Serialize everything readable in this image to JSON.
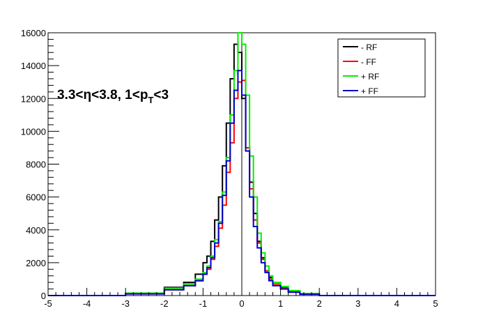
{
  "chart_data": {
    "type": "line",
    "style": "step-histogram",
    "title": "",
    "xlabel": "",
    "ylabel": "",
    "xlim": [
      -5,
      5
    ],
    "ylim": [
      0,
      16000
    ],
    "x_ticks": [
      -5,
      -4,
      -3,
      -2,
      -1,
      0,
      1,
      2,
      3,
      4,
      5
    ],
    "x_tick_labels": [
      "-5",
      "-4",
      "-3",
      "-2",
      "-1",
      "0",
      "1",
      "2",
      "3",
      "4",
      "5"
    ],
    "y_ticks": [
      0,
      2000,
      4000,
      6000,
      8000,
      10000,
      12000,
      14000,
      16000
    ],
    "y_tick_labels": [
      "0",
      "2000",
      "4000",
      "6000",
      "8000",
      "10000",
      "12000",
      "14000",
      "16000"
    ],
    "grid": false,
    "legend_position": "top-right",
    "annotation": {
      "text_before": "3.3<η<3.8, 1<p",
      "subscript": "T",
      "text_after": "<3"
    },
    "bin_edges": [
      -3.0,
      -2.0,
      -1.5,
      -1.2,
      -1.0,
      -0.9,
      -0.8,
      -0.7,
      -0.6,
      -0.5,
      -0.4,
      -0.3,
      -0.2,
      -0.1,
      0.0,
      0.1,
      0.2,
      0.3,
      0.4,
      0.5,
      0.6,
      0.7,
      0.8,
      1.0,
      1.2,
      1.5,
      2.0,
      3.0
    ],
    "series": [
      {
        "name": "- RF",
        "color": "#000000",
        "values": [
          150,
          500,
          800,
          1300,
          2000,
          2400,
          3300,
          4600,
          6000,
          7900,
          10500,
          13200,
          15300,
          14800,
          12000,
          9000,
          6900,
          5000,
          3300,
          2300,
          1500,
          1100,
          700,
          500,
          250,
          100,
          0
        ]
      },
      {
        "name": "- FF",
        "color": "#ff0000",
        "values": [
          100,
          350,
          600,
          900,
          1300,
          1600,
          2200,
          3000,
          4100,
          5500,
          7500,
          9300,
          12000,
          13000,
          13100,
          9000,
          6500,
          4600,
          3200,
          2200,
          1500,
          1000,
          700,
          450,
          250,
          100,
          0
        ]
      },
      {
        "name": "+ RF",
        "color": "#00ee00",
        "values": [
          150,
          450,
          700,
          1000,
          1400,
          1800,
          2400,
          3400,
          4500,
          6300,
          8400,
          11000,
          13700,
          16000,
          15300,
          12200,
          8500,
          6000,
          3800,
          2600,
          1800,
          1200,
          800,
          550,
          300,
          120,
          0
        ]
      },
      {
        "name": "+ FF",
        "color": "#0000cc",
        "values": [
          100,
          350,
          600,
          900,
          1300,
          1700,
          2300,
          3200,
          4400,
          6100,
          8200,
          10500,
          12500,
          13700,
          12200,
          8800,
          6000,
          4200,
          2900,
          2000,
          1400,
          900,
          600,
          400,
          200,
          80,
          0
        ]
      }
    ]
  }
}
